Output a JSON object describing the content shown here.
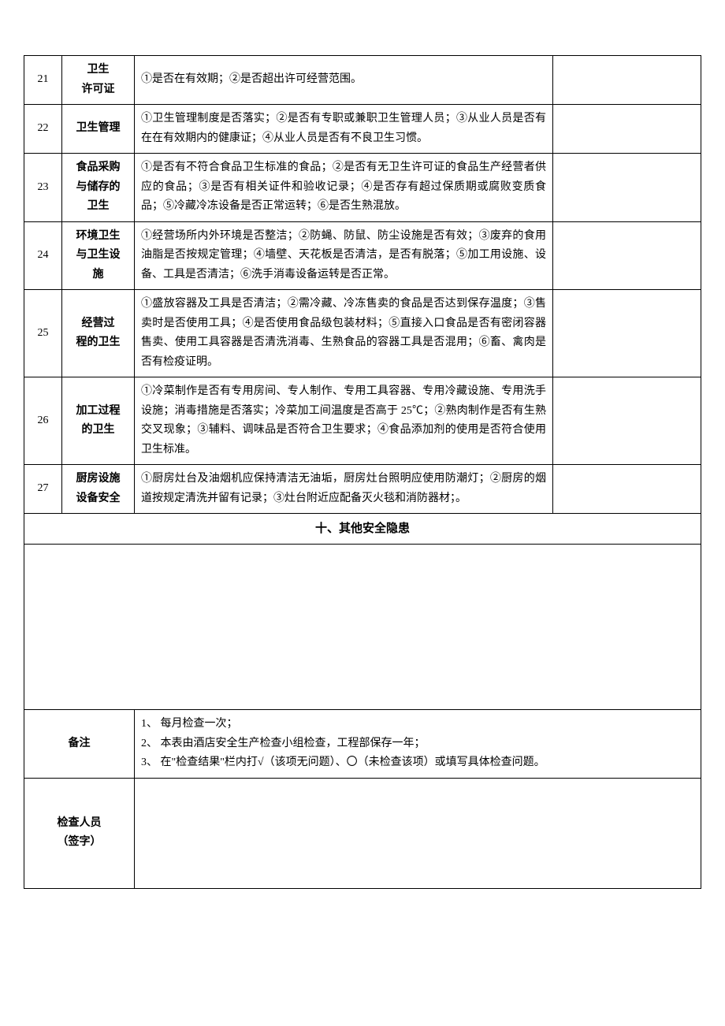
{
  "rows": [
    {
      "num": "21",
      "item": "卫生\n许可证",
      "desc": "①是否在有效期；②是否超出许可经营范围。"
    },
    {
      "num": "22",
      "item": "卫生管理",
      "desc": "①卫生管理制度是否落实；②是否有专职或兼职卫生管理人员；③从业人员是否有在在有效期内的健康证；④从业人员是否有不良卫生习惯。"
    },
    {
      "num": "23",
      "item": "食品采购\n与储存的\n卫生",
      "desc": "①是否有不符合食品卫生标准的食品；②是否有无卫生许可证的食品生产经营者供应的食品；③是否有相关证件和验收记录；④是否存有超过保质期或腐败变质食品；⑤冷藏冷冻设备是否正常运转；⑥是否生熟混放。"
    },
    {
      "num": "24",
      "item": "环境卫生\n与卫生设\n施",
      "desc": "①经营场所内外环境是否整洁；②防蝇、防鼠、防尘设施是否有效；③废弃的食用油脂是否按规定管理；④墙壁、天花板是否清洁，是否有脱落；⑤加工用设施、设备、工具是否清洁；⑥洗手消毒设备运转是否正常。"
    },
    {
      "num": "25",
      "item": "经营过\n程的卫生",
      "desc": "①盛放容器及工具是否清洁；②需冷藏、冷冻售卖的食品是否达到保存温度；③售卖时是否使用工具；④是否使用食品级包装材料；⑤直接入口食品是否有密闭容器售卖、使用工具容器是否清洗消毒、生熟食品的容器工具是否混用；⑥畜、禽肉是否有检疫证明。"
    },
    {
      "num": "26",
      "item": "加工过程\n的卫生",
      "desc": "①冷菜制作是否有专用房间、专人制作、专用工具容器、专用冷藏设施、专用洗手设施；消毒措施是否落实；冷菜加工间温度是否高于 25℃；②熟肉制作是否有生熟交叉现象；③辅料、调味品是否符合卫生要求；④食品添加剂的使用是否符合使用卫生标准。"
    },
    {
      "num": "27",
      "item": "厨房设施\n设备安全",
      "desc": "①厨房灶台及油烟机应保持清洁无油垢，厨房灶台照明应使用防潮灯；②厨房的烟道按规定清洗并留有记录；③灶台附近应配备灭火毯和消防器材；。"
    }
  ],
  "section_title": "十、其他安全隐患",
  "notes_label": "备注",
  "notes_lines": [
    "1、 每月检查一次；",
    "2、 本表由酒店安全生产检查小组检查，工程部保存一年；",
    "3、 在\"检查结果\"栏内打√（该项无问题）、〇（未检查该项）或填写具体检查问题。"
  ],
  "sign_label": "检查人员\n（签字）",
  "colors": {
    "border": "#000000",
    "text": "#000000",
    "background": "#ffffff"
  }
}
